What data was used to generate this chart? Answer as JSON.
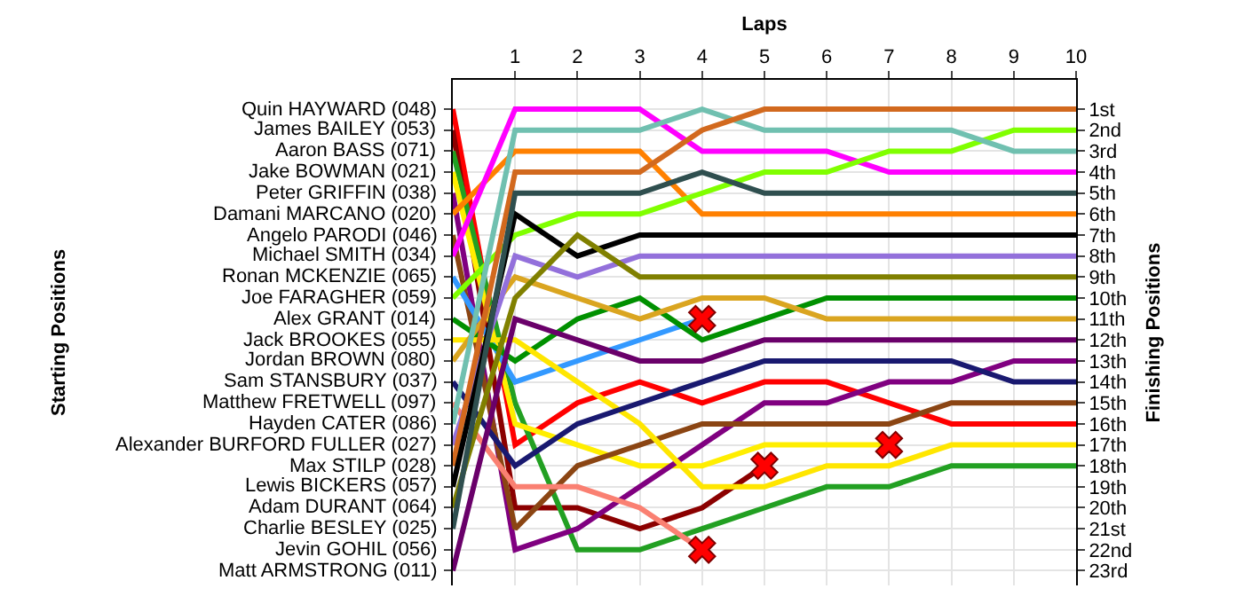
{
  "chart_data": {
    "type": "line",
    "xlabel": "Laps",
    "ylabel": "Finishing Positions",
    "x": [
      0,
      1,
      2,
      3,
      4,
      5,
      6,
      7,
      8,
      9,
      10
    ],
    "xlim": [
      0,
      10
    ],
    "xticks": [
      1,
      2,
      3,
      4,
      5,
      6,
      7,
      8,
      9,
      10
    ],
    "ylim": [
      23.7,
      -0.4
    ],
    "yticks": [
      {
        "value": 1,
        "label": "1st"
      },
      {
        "value": 2,
        "label": "2nd"
      },
      {
        "value": 3,
        "label": "3rd"
      },
      {
        "value": 4,
        "label": "4th"
      },
      {
        "value": 5,
        "label": "5th"
      },
      {
        "value": 6,
        "label": "6th"
      },
      {
        "value": 7,
        "label": "7th"
      },
      {
        "value": 8,
        "label": "8th"
      },
      {
        "value": 9,
        "label": "9th"
      },
      {
        "value": 10,
        "label": "10th"
      },
      {
        "value": 11,
        "label": "11th"
      },
      {
        "value": 12,
        "label": "12th"
      },
      {
        "value": 13,
        "label": "13th"
      },
      {
        "value": 14,
        "label": "14th"
      },
      {
        "value": 15,
        "label": "15th"
      },
      {
        "value": 16,
        "label": "16th"
      },
      {
        "value": 17,
        "label": "17th"
      },
      {
        "value": 18,
        "label": "18th"
      },
      {
        "value": 19,
        "label": "19th"
      },
      {
        "value": 20,
        "label": "20th"
      },
      {
        "value": 21,
        "label": "21st"
      },
      {
        "value": 22,
        "label": "22nd"
      },
      {
        "value": 23,
        "label": "23rd"
      }
    ],
    "annotations": [
      "Starting Positions",
      "Quin HAYWARD (048)",
      "James BAILEY (053)",
      "Aaron BASS (071)",
      "Jake BOWMAN (021)",
      "Peter GRIFFIN (038)",
      "Damani MARCANO (020)",
      "Angelo PARODI (046)",
      "Michael SMITH (034)",
      "Ronan MCKENZIE (065)",
      "Joe FARAGHER (059)",
      "Alex GRANT (014)",
      "Jack BROOKES (055)",
      "Jordan BROWN (080)",
      "Sam STANSBURY (037)",
      "Matthew FRETWELL (097)",
      "Hayden CATER (086)",
      "Alexander BURFORD FULLER (027)",
      "Max STILP (028)",
      "Lewis BICKERS (057)",
      "Adam DURANT (064)",
      "Charlie BESLEY (025)",
      "Jevin GOHIL (056)",
      "Matt ARMSTRONG (011)"
    ],
    "grid": true,
    "series": [
      {
        "color": "#ff0000",
        "values": [
          1,
          17,
          15,
          14,
          15,
          14,
          14,
          15,
          16,
          16,
          16
        ]
      },
      {
        "color": "#8b0000",
        "values": [
          2,
          20,
          20,
          21,
          20,
          18,
          null,
          null,
          null,
          null,
          null
        ]
      },
      {
        "color": "#22a022",
        "values": [
          3,
          15,
          22,
          22,
          21,
          20,
          19,
          19,
          18,
          18,
          18
        ]
      },
      {
        "color": "#ffee00",
        "values": [
          4,
          16,
          17,
          18,
          18,
          17,
          17,
          17,
          null,
          null,
          null
        ]
      },
      {
        "color": "#800080",
        "values": [
          5,
          22,
          21,
          19,
          17,
          15,
          15,
          14,
          14,
          13,
          13
        ]
      },
      {
        "color": "#ff8000",
        "values": [
          6,
          3,
          3,
          3,
          6,
          6,
          6,
          6,
          6,
          6,
          6
        ]
      },
      {
        "color": "#8b4513",
        "values": [
          7,
          21,
          18,
          17,
          16,
          16,
          16,
          16,
          15,
          15,
          15
        ]
      },
      {
        "color": "#ff00ff",
        "values": [
          8,
          1,
          1,
          1,
          3,
          3,
          3,
          4,
          4,
          4,
          4
        ]
      },
      {
        "color": "#3399ff",
        "values": [
          9,
          14,
          13,
          12,
          11,
          null,
          null,
          null,
          null,
          null,
          null
        ]
      },
      {
        "color": "#80ff00",
        "values": [
          10,
          7,
          6,
          6,
          5,
          4,
          4,
          3,
          3,
          2,
          2
        ]
      },
      {
        "color": "#009000",
        "values": [
          11,
          13,
          11,
          10,
          12,
          11,
          10,
          10,
          10,
          10,
          10
        ]
      },
      {
        "color": "#ffe600",
        "values": [
          12,
          12,
          14,
          16,
          19,
          19,
          18,
          18,
          17,
          17,
          17
        ]
      },
      {
        "color": "#daa520",
        "values": [
          13,
          9,
          10,
          11,
          10,
          10,
          11,
          11,
          11,
          11,
          11
        ]
      },
      {
        "color": "#191970",
        "values": [
          14,
          18,
          16,
          15,
          14,
          13,
          13,
          13,
          13,
          14,
          14
        ]
      },
      {
        "color": "#fa8072",
        "values": [
          15,
          19,
          19,
          20,
          22,
          null,
          null,
          null,
          null,
          null,
          null
        ]
      },
      {
        "color": "#70c0b0",
        "values": [
          16,
          2,
          2,
          2,
          1,
          2,
          2,
          2,
          2,
          3,
          3
        ]
      },
      {
        "color": "#9370db",
        "values": [
          17,
          8,
          9,
          8,
          8,
          8,
          8,
          8,
          8,
          8,
          8
        ]
      },
      {
        "color": "#d2691e",
        "values": [
          18,
          4,
          4,
          4,
          2,
          1,
          1,
          1,
          1,
          1,
          1
        ]
      },
      {
        "color": "#000000",
        "values": [
          19,
          6,
          8,
          7,
          7,
          7,
          7,
          7,
          7,
          7,
          7
        ]
      },
      {
        "color": "#808000",
        "values": [
          20,
          10,
          7,
          9,
          9,
          9,
          9,
          9,
          9,
          9,
          9
        ]
      },
      {
        "color": "#2f4f4f",
        "values": [
          21,
          5,
          5,
          5,
          4,
          5,
          5,
          5,
          5,
          5,
          5
        ]
      },
      {
        "color": "#6a006a",
        "values": [
          23,
          11,
          12,
          13,
          13,
          12,
          12,
          12,
          12,
          12,
          12
        ]
      },
      {
        "type": "scatter",
        "marker": "cross",
        "color": "#ff0000",
        "x": [
          4,
          5,
          7,
          4
        ],
        "values": [
          11,
          18,
          17,
          22
        ]
      }
    ]
  }
}
